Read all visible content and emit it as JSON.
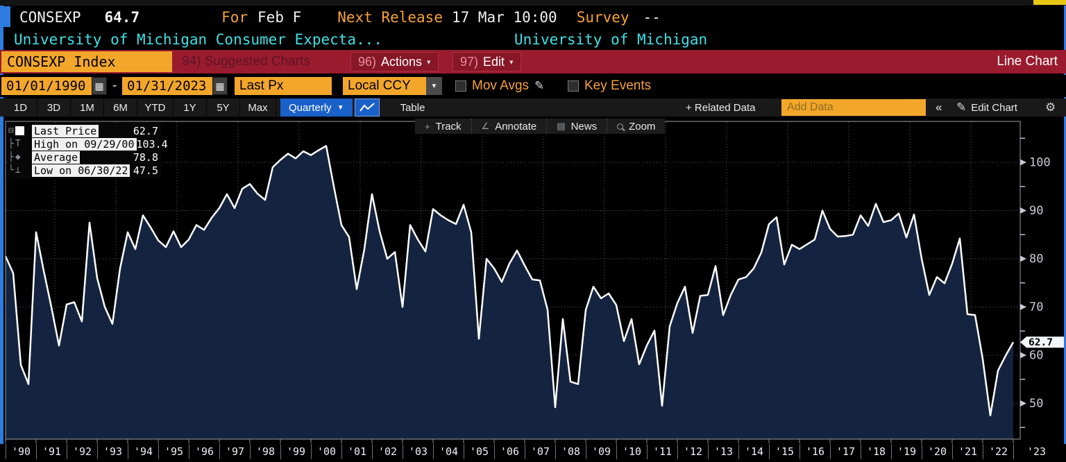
{
  "header": {
    "ticker": "CONSEXP",
    "last_value": "64.7",
    "for_label": "For",
    "for_value": "Feb F",
    "next_release_label": "Next Release",
    "next_release_value": "17 Mar 10:00",
    "survey_label": "Survey",
    "survey_value": "--",
    "description": "University of Michigan Consumer Expecta...",
    "source": "University of Michigan"
  },
  "redbar": {
    "security_box": "CONSEXP Index",
    "suggested_charts": "94) Suggested Charts",
    "actions_num": "96)",
    "actions_label": "Actions",
    "edit_num": "97)",
    "edit_label": "Edit",
    "chart_type": "Line Chart"
  },
  "settings": {
    "date_from": "01/01/1990",
    "date_separator": "-",
    "date_to": "01/31/2023",
    "price_field": "Last Px",
    "currency": "Local CCY",
    "mov_avgs_label": "Mov Avgs",
    "key_events_label": "Key Events"
  },
  "tabs": {
    "ranges": [
      "1D",
      "3D",
      "1M",
      "6M",
      "YTD",
      "1Y",
      "5Y",
      "Max"
    ],
    "frequency": "Quarterly",
    "table_label": "Table",
    "related_data_label": "+ Related Data",
    "add_data_placeholder": "Add Data",
    "collapse": "«",
    "edit_chart_label": "Edit Chart"
  },
  "chart_toolbar": {
    "track": "Track",
    "annotate": "Annotate",
    "news": "News",
    "zoom": "Zoom"
  },
  "legend": {
    "rows": [
      {
        "label": "Last Price",
        "value": "62.7"
      },
      {
        "label": "High on 09/29/00",
        "value": "103.4"
      },
      {
        "label": "Average",
        "value": "78.8"
      },
      {
        "label": "Low on 06/30/22",
        "value": "47.5"
      }
    ]
  },
  "last_price_callout": "62.7",
  "chart_data": {
    "type": "area",
    "title": "CONSEXP Index - University of Michigan Consumer Expectations",
    "frequency": "quarterly",
    "x_start_year": 1990,
    "x_end_year": 2023,
    "x_labels": [
      "'90",
      "'91",
      "'92",
      "'93",
      "'94",
      "'95",
      "'96",
      "'97",
      "'98",
      "'99",
      "'00",
      "'01",
      "'02",
      "'03",
      "'04",
      "'05",
      "'06",
      "'07",
      "'08",
      "'09",
      "'10",
      "'11",
      "'12",
      "'13",
      "'14",
      "'15",
      "'16",
      "'17",
      "'18",
      "'19",
      "'20",
      "'21",
      "'22",
      "'23"
    ],
    "yticks": [
      50,
      60,
      70,
      80,
      90,
      100
    ],
    "ylim": [
      42.6,
      108.5
    ],
    "grid": true,
    "legend_position": "top-left",
    "line_color": "#ffffff",
    "fill_color": "#142440",
    "stats": {
      "last": 62.7,
      "high": 103.4,
      "high_date": "09/29/00",
      "average": 78.8,
      "low": 47.5,
      "low_date": "06/30/22"
    },
    "series": [
      {
        "name": "Last Price",
        "values": [
          80.5,
          77,
          58,
          54,
          85.5,
          77.5,
          70,
          62,
          70.5,
          71,
          67,
          87.5,
          76,
          70,
          66.5,
          78,
          85.5,
          82,
          89,
          86.5,
          83.8,
          82.4,
          85.7,
          82.4,
          84,
          87,
          86,
          88.5,
          90.5,
          93.4,
          90.5,
          94.5,
          95.5,
          93.5,
          92.2,
          99,
          100.5,
          101.8,
          100.8,
          102.3,
          101.5,
          102.5,
          103.4,
          95,
          87,
          84.5,
          73.7,
          82,
          93.4,
          85.7,
          80,
          81.4,
          70,
          87,
          84,
          81.5,
          90.3,
          89,
          88,
          87.2,
          91.2,
          85.5,
          63.4,
          80,
          78,
          75.2,
          79,
          81.7,
          78.6,
          75.7,
          75.5,
          69.4,
          49.2,
          67.5,
          54.5,
          54,
          69.4,
          74.2,
          71.8,
          72.8,
          70.4,
          62.9,
          67.5,
          58.1,
          62,
          65.1,
          49.5,
          66,
          70.8,
          74.2,
          64.6,
          72.3,
          72.5,
          78.5,
          68.3,
          72.5,
          75.7,
          76.2,
          78,
          81.3,
          87.2,
          88.6,
          78.8,
          82.9,
          82,
          83,
          84,
          90,
          86.2,
          84.6,
          84.7,
          85,
          89,
          86.8,
          91.4,
          87.6,
          88,
          89.4,
          84.4,
          89.2,
          80,
          72.5,
          76.2,
          74.9,
          79,
          84.2,
          68.5,
          68.3,
          59.2,
          47.5,
          56.8,
          59.9,
          62.7
        ]
      }
    ]
  }
}
